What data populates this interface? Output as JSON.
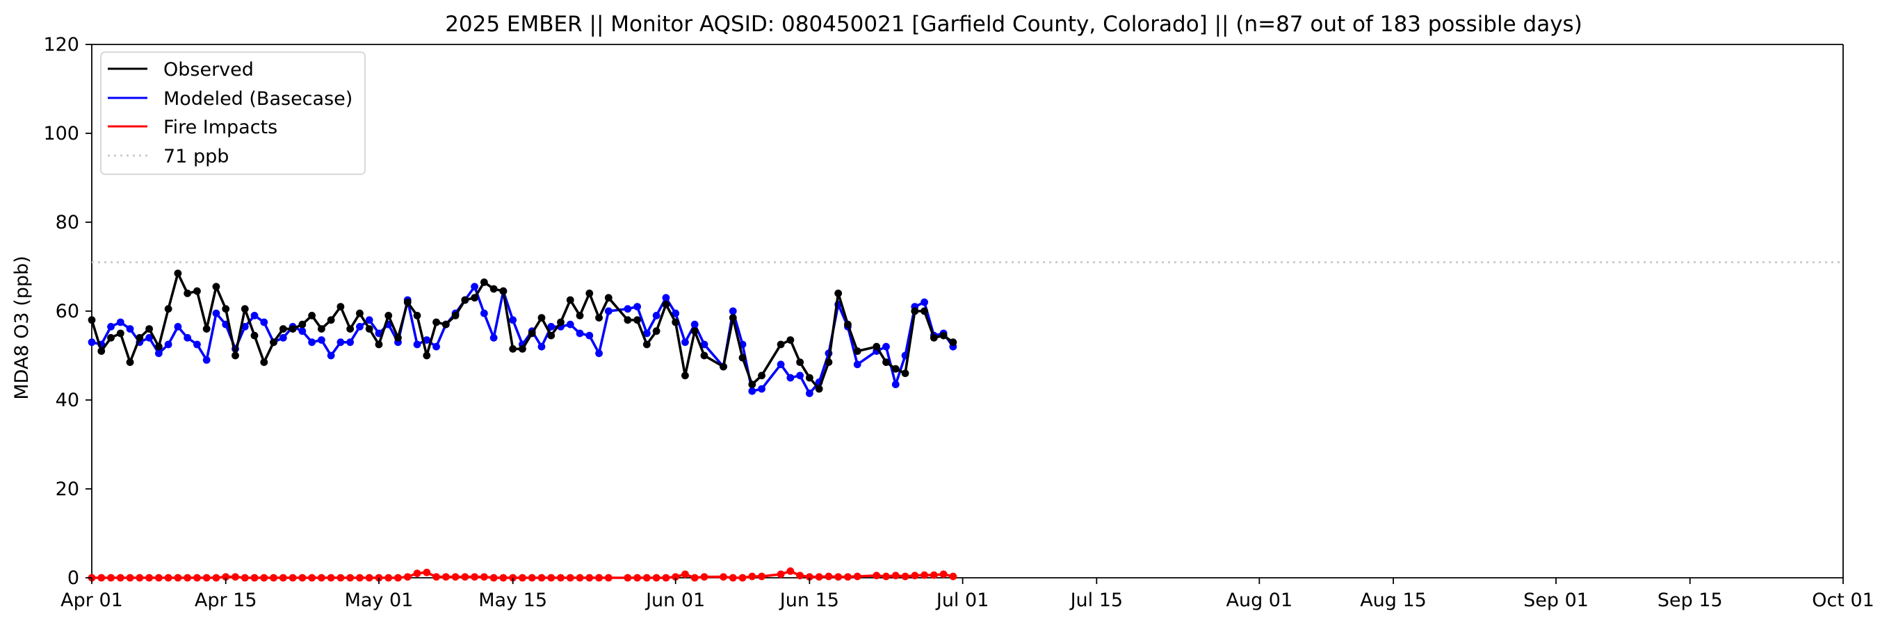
{
  "chart_data": {
    "type": "line",
    "title": "2025 EMBER || Monitor AQSID: 080450021 [Garfield County, Colorado] || (n=87 out of 183 possible days)",
    "xlabel": "",
    "ylabel": "MDA8 O3 (ppb)",
    "xlim": [
      "2025-04-01",
      "2025-10-01"
    ],
    "ylim": [
      0,
      120
    ],
    "x_ticks": [
      {
        "date": "2025-04-01",
        "label": "Apr 01"
      },
      {
        "date": "2025-04-15",
        "label": "Apr 15"
      },
      {
        "date": "2025-05-01",
        "label": "May 01"
      },
      {
        "date": "2025-05-15",
        "label": "May 15"
      },
      {
        "date": "2025-06-01",
        "label": "Jun 01"
      },
      {
        "date": "2025-06-15",
        "label": "Jun 15"
      },
      {
        "date": "2025-07-01",
        "label": "Jul 01"
      },
      {
        "date": "2025-07-15",
        "label": "Jul 15"
      },
      {
        "date": "2025-08-01",
        "label": "Aug 01"
      },
      {
        "date": "2025-08-15",
        "label": "Aug 15"
      },
      {
        "date": "2025-09-01",
        "label": "Sep 01"
      },
      {
        "date": "2025-09-15",
        "label": "Sep 15"
      },
      {
        "date": "2025-10-01",
        "label": "Oct 01"
      }
    ],
    "y_ticks": [
      0,
      20,
      40,
      60,
      80,
      100,
      120
    ],
    "grid": false,
    "legend_position": "top-left",
    "reference_line": {
      "label": "71 ppb",
      "value": 71,
      "color": "#cccccc"
    },
    "x": [
      "2025-04-01",
      "2025-04-02",
      "2025-04-03",
      "2025-04-04",
      "2025-04-05",
      "2025-04-06",
      "2025-04-07",
      "2025-04-08",
      "2025-04-09",
      "2025-04-10",
      "2025-04-11",
      "2025-04-12",
      "2025-04-13",
      "2025-04-14",
      "2025-04-15",
      "2025-04-16",
      "2025-04-17",
      "2025-04-18",
      "2025-04-19",
      "2025-04-20",
      "2025-04-21",
      "2025-04-22",
      "2025-04-23",
      "2025-04-24",
      "2025-04-25",
      "2025-04-26",
      "2025-04-27",
      "2025-04-28",
      "2025-04-29",
      "2025-04-30",
      "2025-05-01",
      "2025-05-02",
      "2025-05-03",
      "2025-05-04",
      "2025-05-05",
      "2025-05-06",
      "2025-05-07",
      "2025-05-08",
      "2025-05-09",
      "2025-05-10",
      "2025-05-11",
      "2025-05-12",
      "2025-05-13",
      "2025-05-14",
      "2025-05-15",
      "2025-05-16",
      "2025-05-17",
      "2025-05-18",
      "2025-05-19",
      "2025-05-20",
      "2025-05-21",
      "2025-05-22",
      "2025-05-23",
      "2025-05-24",
      "2025-05-25",
      "2025-05-27",
      "2025-05-28",
      "2025-05-29",
      "2025-05-30",
      "2025-05-31",
      "2025-06-01",
      "2025-06-02",
      "2025-06-03",
      "2025-06-04",
      "2025-06-06",
      "2025-06-07",
      "2025-06-08",
      "2025-06-09",
      "2025-06-10",
      "2025-06-12",
      "2025-06-13",
      "2025-06-14",
      "2025-06-15",
      "2025-06-16",
      "2025-06-17",
      "2025-06-18",
      "2025-06-19",
      "2025-06-20",
      "2025-06-22",
      "2025-06-23",
      "2025-06-24",
      "2025-06-25",
      "2025-06-26",
      "2025-06-27",
      "2025-06-28",
      "2025-06-29",
      "2025-06-30"
    ],
    "series": [
      {
        "name": "Observed",
        "color": "#000000",
        "values": [
          58,
          51,
          54,
          55,
          48.5,
          54,
          56,
          52,
          60.5,
          68.5,
          64,
          64.5,
          56,
          65.5,
          60.5,
          50,
          60.5,
          54.5,
          48.5,
          53,
          56,
          56,
          57,
          59,
          56,
          58,
          61,
          56,
          59.5,
          56,
          52.5,
          59,
          54,
          62,
          59,
          50,
          57.5,
          57,
          59,
          62.5,
          63,
          66.5,
          65,
          64.5,
          51.5,
          51.5,
          55,
          58.5,
          54.5,
          57.5,
          62.5,
          59,
          64,
          58.5,
          63,
          58,
          58,
          52.5,
          55.5,
          61.5,
          57.5,
          45.5,
          55.5,
          50,
          47.5,
          58.5,
          49.5,
          43.5,
          45.5,
          52.5,
          53.5,
          48.5,
          45,
          42.5,
          48.5,
          64,
          57,
          51,
          52,
          48.5,
          47,
          46,
          60,
          60,
          54,
          54.5,
          53
        ]
      },
      {
        "name": "Modeled (Basecase)",
        "color": "#0000ff",
        "values": [
          53,
          52.5,
          56.5,
          57.5,
          56,
          53,
          54,
          50.5,
          52.5,
          56.5,
          54,
          52.5,
          49,
          59.5,
          57,
          51.5,
          56.5,
          59,
          57.5,
          53,
          54,
          56.5,
          55.5,
          53,
          53.5,
          50,
          53,
          53,
          56.5,
          58,
          55,
          57,
          53,
          62.5,
          52.5,
          53.5,
          52,
          57,
          59.5,
          62.5,
          65.5,
          59.5,
          54,
          64.5,
          58,
          52.5,
          55.5,
          52,
          56.5,
          56.5,
          57,
          55,
          54.5,
          50.5,
          60,
          60.5,
          61,
          55,
          59,
          63,
          59.5,
          53,
          57,
          52.5,
          47.5,
          60,
          52.5,
          42,
          42.5,
          48,
          45,
          45.5,
          41.5,
          44,
          50.5,
          61.5,
          56.5,
          48,
          51,
          52,
          43.5,
          50,
          61,
          62,
          54.5,
          55,
          52
        ]
      },
      {
        "name": "Fire Impacts",
        "color": "#ff0000",
        "values": [
          0,
          0,
          0,
          0,
          0,
          0,
          0,
          0,
          0,
          0,
          0,
          0,
          0,
          0,
          0.2,
          0.2,
          0,
          0,
          0,
          0,
          0,
          0,
          0,
          0,
          0,
          0,
          0,
          0,
          0,
          0,
          0,
          0,
          0,
          0.2,
          1,
          1.2,
          0.2,
          0.2,
          0.2,
          0.2,
          0.2,
          0.2,
          0,
          0,
          0,
          0,
          0,
          0,
          0,
          0,
          0,
          0,
          0,
          0,
          0,
          0,
          0,
          0,
          0,
          0,
          0.2,
          0.8,
          0,
          0.2,
          0.2,
          0,
          0,
          0.3,
          0.3,
          0.8,
          1.5,
          0.5,
          0.2,
          0.2,
          0.3,
          0.2,
          0.2,
          0.3,
          0.5,
          0.3,
          0.5,
          0.3,
          0.5,
          0.6,
          0.6,
          0.8,
          0.3
        ]
      }
    ]
  }
}
